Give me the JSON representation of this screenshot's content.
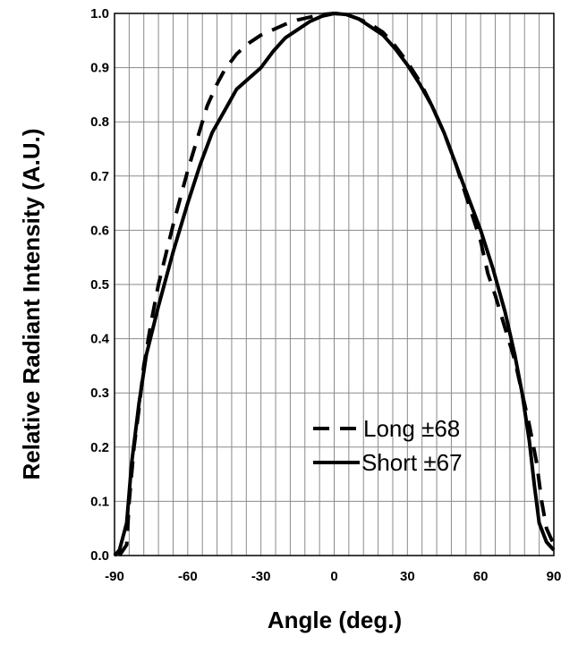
{
  "chart_data": {
    "type": "line",
    "xlabel": "Angle (deg.)",
    "ylabel": "Relative Radiant Intensity (A.U.)",
    "xlim": [
      -90,
      90
    ],
    "ylim": [
      0,
      1.0
    ],
    "x_ticks": [
      -90,
      -60,
      -30,
      0,
      30,
      60,
      90
    ],
    "x_tick_labels": [
      "-90",
      "-60",
      "-30",
      "0",
      "30",
      "60",
      "90"
    ],
    "y_ticks": [
      0,
      0.1,
      0.2,
      0.3,
      0.4,
      0.5,
      0.6,
      0.7,
      0.8,
      0.9,
      1.0
    ],
    "y_tick_labels": [
      "0.0",
      "0.1",
      "0.2",
      "0.3",
      "0.4",
      "0.5",
      "0.6",
      "0.7",
      "0.8",
      "0.9",
      "1.0"
    ],
    "grid": true,
    "minor_x_grid_step": 6,
    "legend_position": "bottom-right",
    "series": [
      {
        "name": "Long ±68",
        "style": "dashed",
        "color": "#000000",
        "points": [
          [
            -88,
            0.0
          ],
          [
            -85,
            0.02
          ],
          [
            -84,
            0.1
          ],
          [
            -82,
            0.2
          ],
          [
            -80,
            0.27
          ],
          [
            -78,
            0.35
          ],
          [
            -75,
            0.43
          ],
          [
            -72,
            0.5
          ],
          [
            -66,
            0.61
          ],
          [
            -60,
            0.71
          ],
          [
            -56,
            0.77
          ],
          [
            -52,
            0.83
          ],
          [
            -48,
            0.87
          ],
          [
            -45,
            0.895
          ],
          [
            -40,
            0.925
          ],
          [
            -35,
            0.945
          ],
          [
            -30,
            0.96
          ],
          [
            -25,
            0.97
          ],
          [
            -20,
            0.98
          ],
          [
            -15,
            0.988
          ],
          [
            -10,
            0.993
          ],
          [
            -5,
            0.998
          ],
          [
            0,
            1.0
          ],
          [
            5,
            0.998
          ],
          [
            10,
            0.99
          ],
          [
            15,
            0.98
          ],
          [
            20,
            0.965
          ],
          [
            25,
            0.94
          ],
          [
            30,
            0.91
          ],
          [
            35,
            0.875
          ],
          [
            40,
            0.83
          ],
          [
            45,
            0.78
          ],
          [
            50,
            0.72
          ],
          [
            55,
            0.65
          ],
          [
            60,
            0.58
          ],
          [
            63,
            0.52
          ],
          [
            66,
            0.48
          ],
          [
            70,
            0.42
          ],
          [
            74,
            0.36
          ],
          [
            77,
            0.3
          ],
          [
            80,
            0.24
          ],
          [
            83,
            0.17
          ],
          [
            85,
            0.1
          ],
          [
            87,
            0.05
          ],
          [
            90,
            0.02
          ]
        ]
      },
      {
        "name": "Short ±67",
        "style": "solid",
        "color": "#000000",
        "points": [
          [
            -90,
            0.0
          ],
          [
            -88,
            0.01
          ],
          [
            -85,
            0.06
          ],
          [
            -83,
            0.17
          ],
          [
            -80,
            0.28
          ],
          [
            -77,
            0.37
          ],
          [
            -72,
            0.46
          ],
          [
            -66,
            0.56
          ],
          [
            -60,
            0.65
          ],
          [
            -55,
            0.72
          ],
          [
            -50,
            0.78
          ],
          [
            -45,
            0.82
          ],
          [
            -40,
            0.86
          ],
          [
            -35,
            0.88
          ],
          [
            -30,
            0.9
          ],
          [
            -25,
            0.93
          ],
          [
            -20,
            0.955
          ],
          [
            -15,
            0.97
          ],
          [
            -10,
            0.985
          ],
          [
            -5,
            0.995
          ],
          [
            0,
            1.0
          ],
          [
            5,
            0.998
          ],
          [
            10,
            0.99
          ],
          [
            15,
            0.975
          ],
          [
            20,
            0.96
          ],
          [
            25,
            0.935
          ],
          [
            30,
            0.905
          ],
          [
            35,
            0.87
          ],
          [
            40,
            0.83
          ],
          [
            45,
            0.78
          ],
          [
            50,
            0.72
          ],
          [
            55,
            0.66
          ],
          [
            60,
            0.6
          ],
          [
            65,
            0.53
          ],
          [
            70,
            0.45
          ],
          [
            74,
            0.37
          ],
          [
            77,
            0.3
          ],
          [
            80,
            0.21
          ],
          [
            82,
            0.13
          ],
          [
            84,
            0.06
          ],
          [
            87,
            0.025
          ],
          [
            90,
            0.01
          ]
        ]
      }
    ]
  }
}
